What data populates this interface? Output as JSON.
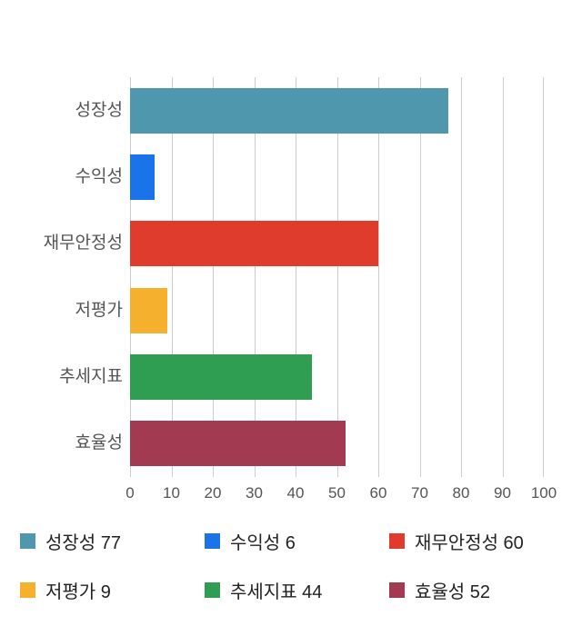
{
  "chart_data": {
    "type": "bar",
    "orientation": "horizontal",
    "title": "",
    "xlabel": "",
    "ylabel": "",
    "categories": [
      "성장성",
      "수익성",
      "재무안정성",
      "저평가",
      "추세지표",
      "효율성"
    ],
    "values": [
      77,
      6,
      60,
      9,
      44,
      52
    ],
    "colors": [
      "#4e97ac",
      "#1a73e8",
      "#e03c2d",
      "#f5b12d",
      "#2f9e53",
      "#a23b52"
    ],
    "xlim": [
      0,
      100
    ],
    "xticks": [
      0,
      10,
      20,
      30,
      40,
      50,
      60,
      70,
      80,
      90,
      100
    ],
    "grid": true,
    "gridline_color": "#cccccc",
    "legend_position": "bottom",
    "legend": [
      {
        "label": "성장성 77",
        "color": "#4e97ac"
      },
      {
        "label": "수익성 6",
        "color": "#1a73e8"
      },
      {
        "label": "재무안정성 60",
        "color": "#e03c2d"
      },
      {
        "label": "저평가 9",
        "color": "#f5b12d"
      },
      {
        "label": "추세지표 44",
        "color": "#2f9e53"
      },
      {
        "label": "효율성 52",
        "color": "#a23b52"
      }
    ]
  }
}
